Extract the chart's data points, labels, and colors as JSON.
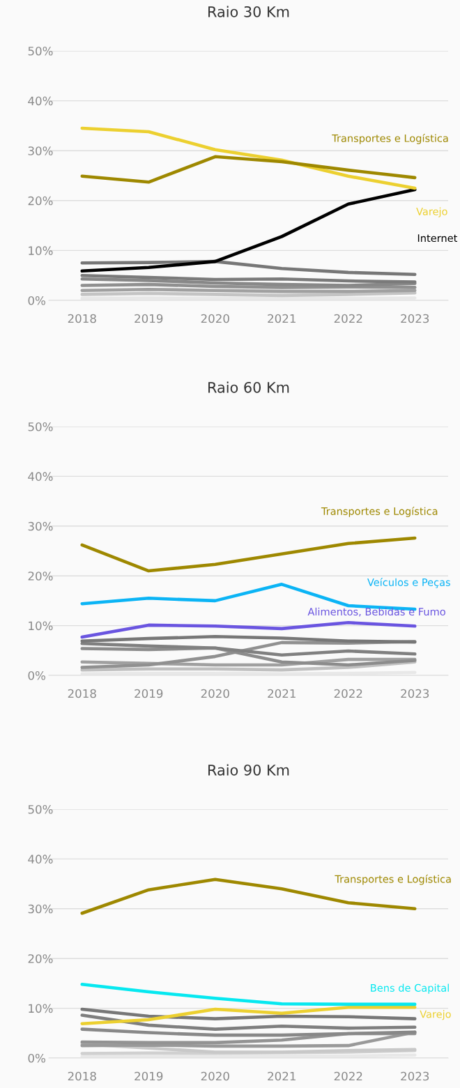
{
  "chart_data": [
    {
      "type": "line",
      "title": "Raio 30 Km",
      "categories": [
        "2018",
        "2019",
        "2020",
        "2021",
        "2022",
        "2023"
      ],
      "ylim": [
        0,
        50
      ],
      "yticks": [
        {
          "value": 0,
          "label": "0%"
        },
        {
          "value": 10,
          "label": "10%"
        },
        {
          "value": 20,
          "label": "20%"
        },
        {
          "value": 30,
          "label": "30%"
        },
        {
          "value": 40,
          "label": "40%"
        },
        {
          "value": 50,
          "label": "50%"
        }
      ],
      "grid": "y",
      "legend": false,
      "marker": "none",
      "line_style": "solid",
      "series": [
        {
          "color": "#e8e8e8",
          "values": [
            0.4,
            0.5,
            0.4,
            0.4,
            0.4,
            0.5
          ]
        },
        {
          "color": "#c4c4c4",
          "values": [
            1.2,
            1.4,
            1.2,
            1.0,
            1.2,
            1.5
          ]
        },
        {
          "color": "#a0a0a0",
          "values": [
            2.0,
            2.2,
            2.0,
            1.8,
            1.8,
            2.0
          ]
        },
        {
          "color": "#909090",
          "values": [
            3.0,
            3.2,
            2.8,
            2.6,
            2.7,
            2.6
          ]
        },
        {
          "color": "#888888",
          "values": [
            4.3,
            4.0,
            3.5,
            3.2,
            3.0,
            3.4
          ]
        },
        {
          "color": "#7a7a7a",
          "values": [
            5.0,
            4.6,
            4.2,
            4.3,
            3.9,
            3.7
          ]
        },
        {
          "color": "#777777",
          "values": [
            7.5,
            7.6,
            7.8,
            6.4,
            5.6,
            5.2
          ]
        },
        {
          "name": "Internet",
          "color": "#000000",
          "values": [
            5.9,
            6.6,
            7.8,
            12.8,
            19.3,
            22.2
          ]
        },
        {
          "name": "Varejo",
          "color": "#ecd030",
          "values": [
            34.5,
            33.8,
            30.2,
            28.1,
            24.9,
            22.5
          ]
        },
        {
          "name": "Transportes e Logística",
          "color": "#9e8800",
          "values": [
            24.9,
            23.7,
            28.8,
            27.8,
            26.1,
            24.6
          ]
        }
      ]
    },
    {
      "type": "line",
      "title": "Raio 60 Km",
      "categories": [
        "2018",
        "2019",
        "2020",
        "2021",
        "2022",
        "2023"
      ],
      "ylim": [
        0,
        50
      ],
      "yticks": [
        {
          "value": 0,
          "label": "0%"
        },
        {
          "value": 10,
          "label": "10%"
        },
        {
          "value": 20,
          "label": "20%"
        },
        {
          "value": 30,
          "label": "30%"
        },
        {
          "value": 40,
          "label": "40%"
        },
        {
          "value": 50,
          "label": "50%"
        }
      ],
      "grid": "y",
      "legend": false,
      "marker": "none",
      "line_style": "solid",
      "series": [
        {
          "color": "#e8e8e8",
          "values": [
            0.3,
            0.4,
            0.4,
            0.3,
            0.4,
            0.6
          ]
        },
        {
          "color": "#c0c0c0",
          "values": [
            1.1,
            1.3,
            1.3,
            1.1,
            1.6,
            2.7
          ]
        },
        {
          "color": "#a0a0a0",
          "values": [
            2.7,
            2.4,
            2.1,
            2.1,
            3.2,
            3.2
          ]
        },
        {
          "color": "#909090",
          "values": [
            1.6,
            2.1,
            3.8,
            6.6,
            6.5,
            6.8
          ]
        },
        {
          "color": "#8c8c8c",
          "values": [
            5.4,
            5.2,
            5.5,
            2.7,
            2.1,
            3.0
          ]
        },
        {
          "color": "#808080",
          "values": [
            6.4,
            5.9,
            5.5,
            4.1,
            4.9,
            4.3
          ]
        },
        {
          "color": "#777777",
          "values": [
            6.9,
            7.4,
            7.8,
            7.5,
            6.9,
            6.7
          ]
        },
        {
          "name": "Alimentos, Bebidas e Fumo",
          "color": "#6a55e0",
          "values": [
            7.7,
            10.1,
            9.9,
            9.4,
            10.6,
            9.9
          ]
        },
        {
          "name": "Veículos e Peças",
          "color": "#0bb4f5",
          "values": [
            14.4,
            15.5,
            15.0,
            18.3,
            14.0,
            13.3
          ]
        },
        {
          "name": "Transportes e Logística",
          "color": "#9e8800",
          "values": [
            26.2,
            21.0,
            22.3,
            24.4,
            26.5,
            27.6
          ]
        }
      ]
    },
    {
      "type": "line",
      "title": "Raio 90 Km",
      "categories": [
        "2018",
        "2019",
        "2020",
        "2021",
        "2022",
        "2023"
      ],
      "ylim": [
        0,
        50
      ],
      "yticks": [
        {
          "value": 0,
          "label": "0%"
        },
        {
          "value": 10,
          "label": "10%"
        },
        {
          "value": 20,
          "label": "20%"
        },
        {
          "value": 30,
          "label": "30%"
        },
        {
          "value": 40,
          "label": "40%"
        },
        {
          "value": 50,
          "label": "50%"
        }
      ],
      "grid": "y",
      "legend": false,
      "marker": "none",
      "line_style": "solid",
      "series": [
        {
          "color": "#e8e8e8",
          "values": [
            0.3,
            0.3,
            0.4,
            0.4,
            0.4,
            0.6
          ]
        },
        {
          "color": "#d0d0d0",
          "values": [
            0.9,
            1.0,
            1.0,
            1.1,
            1.2,
            1.5
          ]
        },
        {
          "color": "#c8c8c8",
          "values": [
            2.8,
            2.0,
            1.2,
            1.2,
            1.5,
            1.7
          ]
        },
        {
          "color": "#999999",
          "values": [
            2.5,
            2.6,
            2.4,
            2.4,
            2.5,
            5.2
          ]
        },
        {
          "color": "#939393",
          "values": [
            3.2,
            3.1,
            3.1,
            3.6,
            4.9,
            4.9
          ]
        },
        {
          "color": "#888888",
          "values": [
            5.8,
            5.1,
            4.6,
            4.6,
            4.9,
            5.2
          ]
        },
        {
          "color": "#7e7e7e",
          "values": [
            8.6,
            6.6,
            5.8,
            6.4,
            6.0,
            6.2
          ]
        },
        {
          "color": "#777777",
          "values": [
            9.8,
            8.4,
            7.9,
            8.4,
            8.3,
            7.9
          ]
        },
        {
          "name": "Varejo",
          "color": "#ecd030",
          "values": [
            6.9,
            7.7,
            9.8,
            9.0,
            10.2,
            10.2
          ]
        },
        {
          "name": "Bens de Capital",
          "color": "#06e8f0",
          "values": [
            14.8,
            13.3,
            12.0,
            10.9,
            10.8,
            10.8
          ]
        },
        {
          "name": "Transportes e Logística",
          "color": "#9e8800",
          "values": [
            29.1,
            33.8,
            35.9,
            34.0,
            31.2,
            30.0
          ]
        }
      ]
    }
  ]
}
